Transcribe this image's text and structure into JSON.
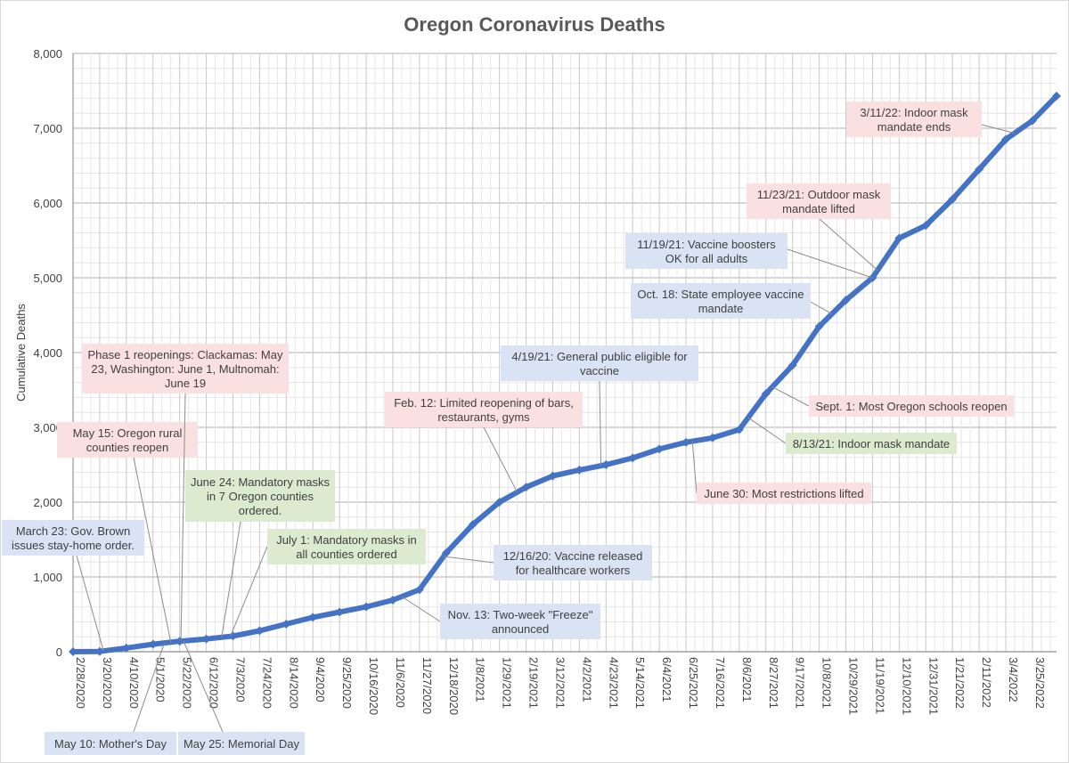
{
  "chart_data": {
    "type": "line",
    "title": "Oregon Coronavirus Deaths",
    "xlabel": "",
    "ylabel": "Cumulative Deaths",
    "ylim": [
      0,
      8000
    ],
    "y_ticks": [
      0,
      1000,
      2000,
      3000,
      4000,
      5000,
      6000,
      7000,
      8000
    ],
    "y_tick_labels": [
      "0",
      "1,000",
      "2,000",
      "3,000",
      "4,000",
      "5,000",
      "6,000",
      "7,000",
      "8,000"
    ],
    "x_start": "2/28/2020",
    "x_end": "4/13/2022",
    "x_tick_labels": [
      "2/28/2020",
      "3/20/2020",
      "4/10/2020",
      "5/1/2020",
      "5/22/2020",
      "6/12/2020",
      "7/3/2020",
      "7/24/2020",
      "8/14/2020",
      "9/4/2020",
      "9/25/2020",
      "10/16/2020",
      "11/6/2020",
      "11/27/2020",
      "12/18/2020",
      "1/8/2021",
      "1/29/2021",
      "2/19/2021",
      "3/12/2021",
      "4/2/2021",
      "4/23/2021",
      "5/14/2021",
      "6/4/2021",
      "6/25/2021",
      "7/16/2021",
      "8/6/2021",
      "8/27/2021",
      "9/17/2021",
      "10/8/2021",
      "10/29/2021",
      "11/19/2021",
      "12/10/2021",
      "12/31/2021",
      "1/21/2022",
      "2/11/2022",
      "3/4/2022",
      "3/25/2022"
    ],
    "series": [
      {
        "name": "Cumulative Deaths",
        "color": "#4472c4",
        "points": [
          {
            "date": "2/28/2020",
            "value": 0
          },
          {
            "date": "3/20/2020",
            "value": 3
          },
          {
            "date": "4/10/2020",
            "value": 50
          },
          {
            "date": "5/1/2020",
            "value": 100
          },
          {
            "date": "5/22/2020",
            "value": 140
          },
          {
            "date": "6/12/2020",
            "value": 170
          },
          {
            "date": "7/3/2020",
            "value": 210
          },
          {
            "date": "7/24/2020",
            "value": 280
          },
          {
            "date": "8/14/2020",
            "value": 370
          },
          {
            "date": "9/4/2020",
            "value": 460
          },
          {
            "date": "9/25/2020",
            "value": 530
          },
          {
            "date": "10/16/2020",
            "value": 600
          },
          {
            "date": "11/6/2020",
            "value": 690
          },
          {
            "date": "11/27/2020",
            "value": 830
          },
          {
            "date": "12/18/2020",
            "value": 1320
          },
          {
            "date": "1/8/2021",
            "value": 1700
          },
          {
            "date": "1/29/2021",
            "value": 2000
          },
          {
            "date": "2/19/2021",
            "value": 2200
          },
          {
            "date": "3/12/2021",
            "value": 2350
          },
          {
            "date": "4/2/2021",
            "value": 2430
          },
          {
            "date": "4/23/2021",
            "value": 2500
          },
          {
            "date": "5/14/2021",
            "value": 2590
          },
          {
            "date": "6/4/2021",
            "value": 2710
          },
          {
            "date": "6/25/2021",
            "value": 2800
          },
          {
            "date": "7/16/2021",
            "value": 2860
          },
          {
            "date": "8/6/2021",
            "value": 2970
          },
          {
            "date": "8/27/2021",
            "value": 3450
          },
          {
            "date": "9/17/2021",
            "value": 3830
          },
          {
            "date": "10/8/2021",
            "value": 4350
          },
          {
            "date": "10/29/2021",
            "value": 4700
          },
          {
            "date": "11/19/2021",
            "value": 5000
          },
          {
            "date": "12/10/2021",
            "value": 5530
          },
          {
            "date": "12/31/2021",
            "value": 5700
          },
          {
            "date": "1/21/2022",
            "value": 6050
          },
          {
            "date": "2/11/2022",
            "value": 6450
          },
          {
            "date": "3/4/2022",
            "value": 6850
          },
          {
            "date": "3/25/2022",
            "value": 7100
          },
          {
            "date": "4/13/2022",
            "value": 7430
          }
        ]
      }
    ],
    "annotations": [
      {
        "id": "march-23",
        "lines": [
          "March 23: Gov. Brown",
          "issues stay-home order."
        ],
        "color": "blue",
        "date": "3/23/2020"
      },
      {
        "id": "may-10",
        "lines": [
          "May 10: Mother's Day"
        ],
        "color": "blue",
        "date": "5/10/2020"
      },
      {
        "id": "may-15",
        "lines": [
          "May 15: Oregon rural",
          "counties reopen"
        ],
        "color": "pink",
        "date": "5/15/2020"
      },
      {
        "id": "phase-1",
        "lines": [
          "Phase 1 reopenings: Clackamas: May",
          "23, Washington: June 1, Multnomah:",
          "June 19"
        ],
        "color": "pink",
        "date": "5/23/2020"
      },
      {
        "id": "may-25",
        "lines": [
          "May 25: Memorial Day"
        ],
        "color": "blue",
        "date": "5/25/2020"
      },
      {
        "id": "june-24",
        "lines": [
          "June 24: Mandatory masks",
          "in 7 Oregon counties",
          "ordered."
        ],
        "color": "green",
        "date": "6/24/2020"
      },
      {
        "id": "july-1",
        "lines": [
          "July 1: Mandatory masks in",
          "all counties ordered"
        ],
        "color": "green",
        "date": "7/1/2020"
      },
      {
        "id": "nov-13",
        "lines": [
          "Nov. 13: Two-week \"Freeze\"",
          "announced"
        ],
        "color": "blue",
        "date": "11/13/2020"
      },
      {
        "id": "dec-16",
        "lines": [
          "12/16/20: Vaccine released",
          "for healthcare workers"
        ],
        "color": "blue",
        "date": "12/16/2020"
      },
      {
        "id": "feb-12",
        "lines": [
          "Feb. 12: Limited reopening of bars,",
          "restaurants, gyms"
        ],
        "color": "pink",
        "date": "2/12/2021"
      },
      {
        "id": "apr-19",
        "lines": [
          "4/19/21: General public eligible for",
          "vaccine"
        ],
        "color": "blue",
        "date": "4/19/2021"
      },
      {
        "id": "june-30",
        "lines": [
          "June 30: Most restrictions lifted"
        ],
        "color": "pink",
        "date": "6/30/2021"
      },
      {
        "id": "aug-13",
        "lines": [
          "8/13/21: Indoor mask mandate"
        ],
        "color": "green",
        "date": "8/13/2021"
      },
      {
        "id": "sept-1",
        "lines": [
          "Sept. 1: Most Oregon schools reopen"
        ],
        "color": "pink",
        "date": "9/1/2021"
      },
      {
        "id": "oct-18",
        "lines": [
          "Oct. 18: State employee vaccine",
          "mandate"
        ],
        "color": "blue",
        "date": "10/18/2021"
      },
      {
        "id": "nov-19",
        "lines": [
          "11/19/21: Vaccine boosters",
          "OK for all adults"
        ],
        "color": "blue",
        "date": "11/19/2021"
      },
      {
        "id": "nov-23",
        "lines": [
          "11/23/21: Outdoor mask",
          "mandate lifted"
        ],
        "color": "pink",
        "date": "11/23/2021"
      },
      {
        "id": "mar-11",
        "lines": [
          "3/11/22: Indoor mask",
          "mandate ends"
        ],
        "color": "pink",
        "date": "3/11/2022"
      }
    ],
    "annotation_colors": {
      "blue": "#dae3f3",
      "pink": "#fbe0e1",
      "green": "#dcead0"
    },
    "grid": true
  }
}
